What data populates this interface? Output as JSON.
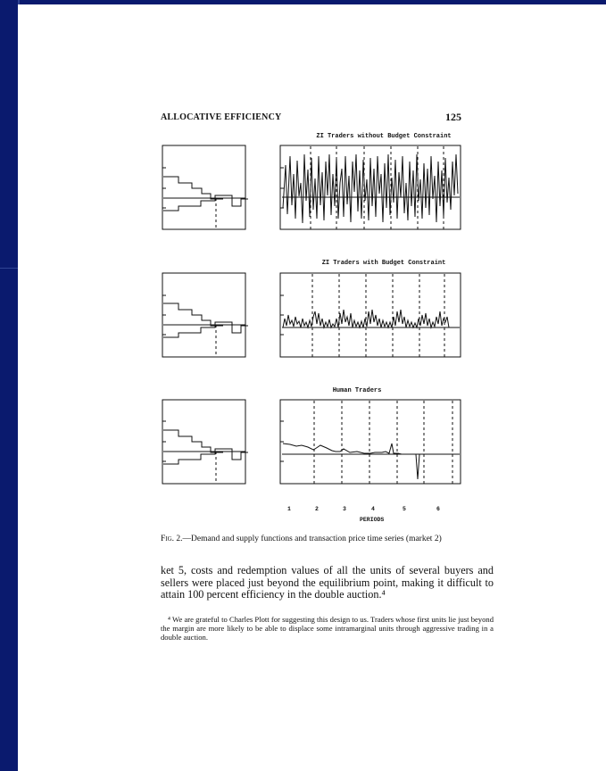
{
  "header": {
    "running_head": "ALLOCATIVE EFFICIENCY",
    "page_number": "125"
  },
  "panels": [
    {
      "title": "ZI Traders without Budget Constraint"
    },
    {
      "title": "ZI Traders with Budget Constraint"
    },
    {
      "title": "Human Traders"
    }
  ],
  "periods": {
    "labels": [
      "1",
      "2",
      "3",
      "4",
      "5",
      "6"
    ],
    "axis_label": "PERIODS"
  },
  "caption": {
    "fig_label": "Fig. 2.",
    "text": "—Demand and supply functions and transaction price time series (market 2)"
  },
  "body_text": "ket 5, costs and redemption values of all the units of several buyers and sellers were placed just beyond the equilibrium point, making it difficult to attain 100 percent efficiency in the double auction.⁴",
  "footnote": "⁴ We are grateful to Charles Plott for suggesting this design to us. Traders whose first units lie just beyond the margin are more likely to be able to displace some intramarginal units through aggressive trading in a double auction."
}
